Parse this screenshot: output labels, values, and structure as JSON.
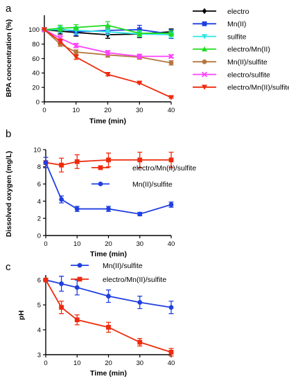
{
  "chart_data": [
    {
      "panel": "a",
      "type": "line",
      "xlabel": "Time (min)",
      "ylabel": "BPA concentration (%)",
      "xlim": [
        0,
        40
      ],
      "ylim": [
        0,
        120
      ],
      "xticks": [
        0,
        10,
        20,
        30,
        40
      ],
      "yticks": [
        0,
        20,
        40,
        60,
        80,
        100
      ],
      "grid": false,
      "legend_position": "right",
      "x": [
        0,
        5,
        10,
        20,
        30,
        40
      ],
      "series": [
        {
          "name": "electro",
          "color": "#000000",
          "marker": "diamond",
          "values": [
            100,
            98,
            96,
            93,
            94,
            97
          ],
          "errors": [
            0,
            4,
            5,
            5,
            5,
            4
          ]
        },
        {
          "name": "Mn(II)",
          "color": "#1f3fe0",
          "marker": "square",
          "values": [
            100,
            101,
            97,
            99,
            100,
            94
          ],
          "errors": [
            0,
            5,
            5,
            5,
            6,
            6
          ]
        },
        {
          "name": "sulfite",
          "color": "#2ee6e6",
          "marker": "triangle-down",
          "values": [
            100,
            100,
            99,
            97,
            94,
            93
          ],
          "errors": [
            0,
            4,
            5,
            4,
            4,
            4
          ]
        },
        {
          "name": "electro/Mn(II)",
          "color": "#22dd22",
          "marker": "triangle-up",
          "values": [
            100,
            102,
            103,
            106,
            95,
            95
          ],
          "errors": [
            0,
            4,
            4,
            5,
            4,
            4
          ]
        },
        {
          "name": "Mn(II)/sulfite",
          "color": "#b5773f",
          "marker": "circle",
          "values": [
            100,
            80,
            69,
            65,
            62,
            54
          ],
          "errors": [
            0,
            3,
            3,
            3,
            3,
            3
          ]
        },
        {
          "name": "electro/sulfite",
          "color": "#ff40ff",
          "marker": "x",
          "values": [
            100,
            88,
            78,
            68,
            63,
            63
          ],
          "errors": [
            0,
            4,
            3,
            3,
            3,
            2
          ]
        },
        {
          "name": "electro/Mn(II)/sulfite",
          "color": "#ee2a0c",
          "marker": "triangle-down",
          "values": [
            100,
            84,
            62,
            38,
            26,
            6
          ],
          "errors": [
            0,
            3,
            3,
            2,
            1,
            1
          ]
        }
      ]
    },
    {
      "panel": "b",
      "type": "line",
      "xlabel": "Time (min)",
      "ylabel": "Dissolved oxygen (mg/L)",
      "xlim": [
        0,
        40
      ],
      "ylim": [
        0,
        10
      ],
      "xticks": [
        0,
        10,
        20,
        30,
        40
      ],
      "yticks": [
        0,
        2,
        4,
        6,
        8,
        10
      ],
      "grid": false,
      "legend_position": "center-right",
      "x": [
        0,
        5,
        10,
        20,
        30,
        40
      ],
      "series": [
        {
          "name": "electro/Mn(II)/sulfite",
          "color": "#ee2a0c",
          "marker": "square",
          "values": [
            8.5,
            8.2,
            8.6,
            8.8,
            8.8,
            8.8
          ],
          "errors": [
            0.6,
            0.8,
            0.8,
            0.8,
            0.9,
            0.9
          ]
        },
        {
          "name": "Mn(II)/sulfite",
          "color": "#1f3fe0",
          "marker": "circle",
          "values": [
            8.5,
            4.2,
            3.1,
            3.1,
            2.5,
            3.6
          ],
          "errors": [
            0.6,
            0.4,
            0.3,
            0.3,
            0.2,
            0.3
          ]
        }
      ]
    },
    {
      "panel": "c",
      "type": "line",
      "xlabel": "Time (min)",
      "ylabel": "pH",
      "xlim": [
        0,
        40
      ],
      "ylim": [
        3,
        6.2
      ],
      "xticks": [
        0,
        10,
        20,
        30,
        40
      ],
      "yticks": [
        3,
        4,
        5,
        6
      ],
      "grid": false,
      "legend_position": "top-right",
      "x": [
        0,
        5,
        10,
        20,
        30,
        40
      ],
      "series": [
        {
          "name": "Mn(II)/sulfite",
          "color": "#1f3fe0",
          "marker": "circle",
          "values": [
            6.0,
            5.85,
            5.7,
            5.35,
            5.1,
            4.9
          ],
          "errors": [
            0.05,
            0.3,
            0.3,
            0.25,
            0.25,
            0.25
          ]
        },
        {
          "name": "electro/Mn(II)/sulfite",
          "color": "#ee2a0c",
          "marker": "square",
          "values": [
            6.0,
            4.9,
            4.4,
            4.1,
            3.5,
            3.1
          ],
          "errors": [
            0.05,
            0.25,
            0.2,
            0.2,
            0.15,
            0.15
          ]
        }
      ]
    }
  ]
}
